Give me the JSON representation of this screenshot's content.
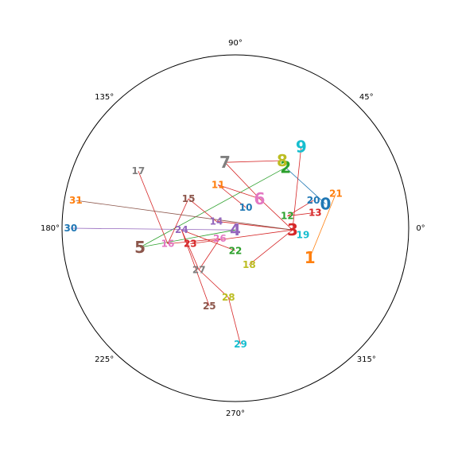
{
  "chart_data": {
    "type": "scatter",
    "projection": "polar",
    "grid": false,
    "r_tick_labels": false,
    "angle_ticks": [
      {
        "deg": 0,
        "label": "0°"
      },
      {
        "deg": 45,
        "label": "45°"
      },
      {
        "deg": 90,
        "label": "90°"
      },
      {
        "deg": 135,
        "label": "135°"
      },
      {
        "deg": 180,
        "label": "180°"
      },
      {
        "deg": 225,
        "label": "225°"
      },
      {
        "deg": 270,
        "label": "270°"
      },
      {
        "deg": 315,
        "label": "315°"
      }
    ],
    "points": [
      {
        "label": "0",
        "x": 0.52,
        "y": 0.14,
        "size": "large",
        "color": "#1f77b4"
      },
      {
        "label": "1",
        "x": 0.43,
        "y": -0.17,
        "size": "large",
        "color": "#ff7f0e"
      },
      {
        "label": "2",
        "x": 0.29,
        "y": 0.35,
        "size": "large",
        "color": "#2ca02c"
      },
      {
        "label": "3",
        "x": 0.33,
        "y": -0.01,
        "size": "large",
        "color": "#d62728"
      },
      {
        "label": "4",
        "x": 0.0,
        "y": -0.01,
        "size": "large",
        "color": "#9467bd"
      },
      {
        "label": "5",
        "x": -0.55,
        "y": -0.11,
        "size": "large",
        "color": "#8c564b"
      },
      {
        "label": "6",
        "x": 0.14,
        "y": 0.17,
        "size": "large",
        "color": "#e377c2"
      },
      {
        "label": "7",
        "x": -0.06,
        "y": 0.38,
        "size": "large",
        "color": "#7f7f7f"
      },
      {
        "label": "8",
        "x": 0.27,
        "y": 0.39,
        "size": "large",
        "color": "#bcbd22"
      },
      {
        "label": "9",
        "x": 0.38,
        "y": 0.47,
        "size": "large",
        "color": "#17becf"
      },
      {
        "label": "10",
        "x": 0.06,
        "y": 0.12,
        "size": "medium",
        "color": "#1f77b4"
      },
      {
        "label": "11",
        "x": -0.1,
        "y": 0.25,
        "size": "medium",
        "color": "#ff7f0e"
      },
      {
        "label": "12",
        "x": 0.3,
        "y": 0.07,
        "size": "medium",
        "color": "#2ca02c"
      },
      {
        "label": "13",
        "x": 0.46,
        "y": 0.09,
        "size": "medium",
        "color": "#d62728"
      },
      {
        "label": "14",
        "x": -0.11,
        "y": 0.04,
        "size": "medium",
        "color": "#9467bd"
      },
      {
        "label": "15",
        "x": -0.27,
        "y": 0.17,
        "size": "medium",
        "color": "#8c564b"
      },
      {
        "label": "16",
        "x": -0.39,
        "y": -0.09,
        "size": "medium",
        "color": "#e377c2"
      },
      {
        "label": "17",
        "x": -0.56,
        "y": 0.33,
        "size": "medium",
        "color": "#7f7f7f"
      },
      {
        "label": "18",
        "x": 0.08,
        "y": -0.21,
        "size": "medium",
        "color": "#bcbd22"
      },
      {
        "label": "19",
        "x": 0.39,
        "y": -0.04,
        "size": "medium",
        "color": "#17becf"
      },
      {
        "label": "20",
        "x": 0.45,
        "y": 0.16,
        "size": "medium",
        "color": "#1f77b4"
      },
      {
        "label": "21",
        "x": 0.58,
        "y": 0.2,
        "size": "medium",
        "color": "#ff7f0e"
      },
      {
        "label": "22",
        "x": 0.0,
        "y": -0.13,
        "size": "medium",
        "color": "#2ca02c"
      },
      {
        "label": "23",
        "x": -0.26,
        "y": -0.09,
        "size": "medium",
        "color": "#d62728"
      },
      {
        "label": "24",
        "x": -0.31,
        "y": -0.01,
        "size": "medium",
        "color": "#9467bd"
      },
      {
        "label": "25",
        "x": -0.15,
        "y": -0.45,
        "size": "medium",
        "color": "#8c564b"
      },
      {
        "label": "26",
        "x": -0.09,
        "y": -0.06,
        "size": "medium",
        "color": "#e377c2"
      },
      {
        "label": "27",
        "x": -0.21,
        "y": -0.24,
        "size": "medium",
        "color": "#7f7f7f"
      },
      {
        "label": "28",
        "x": -0.04,
        "y": -0.4,
        "size": "medium",
        "color": "#bcbd22"
      },
      {
        "label": "29",
        "x": 0.03,
        "y": -0.67,
        "size": "medium",
        "color": "#17becf"
      },
      {
        "label": "30",
        "x": -0.95,
        "y": 0.0,
        "size": "medium",
        "color": "#1f77b4"
      },
      {
        "label": "31",
        "x": -0.92,
        "y": 0.16,
        "size": "medium",
        "color": "#ff7f0e"
      }
    ],
    "links": [
      {
        "from": "0",
        "to": "2",
        "color": "#1f77b4"
      },
      {
        "from": "1",
        "to": "21",
        "color": "#ff7f0e"
      },
      {
        "from": "2",
        "to": "5",
        "color": "#2ca02c"
      },
      {
        "from": "3",
        "to": "6",
        "color": "#d62728"
      },
      {
        "from": "3",
        "to": "9",
        "color": "#d62728"
      },
      {
        "from": "3",
        "to": "18",
        "color": "#d62728"
      },
      {
        "from": "3",
        "to": "23",
        "color": "#d62728"
      },
      {
        "from": "4",
        "to": "30",
        "color": "#9467bd"
      },
      {
        "from": "5",
        "to": "4",
        "color": "#2ca02c"
      },
      {
        "from": "6",
        "to": "7",
        "color": "#d62728"
      },
      {
        "from": "6",
        "to": "11",
        "color": "#d62728"
      },
      {
        "from": "7",
        "to": "8",
        "color": "#d62728"
      },
      {
        "from": "10",
        "to": "11",
        "color": "#d62728"
      },
      {
        "from": "12",
        "to": "13",
        "color": "#d62728"
      },
      {
        "from": "12",
        "to": "20",
        "color": "#d62728"
      },
      {
        "from": "14",
        "to": "15",
        "color": "#d62728"
      },
      {
        "from": "14",
        "to": "3",
        "color": "#d62728"
      },
      {
        "from": "15",
        "to": "16",
        "color": "#d62728"
      },
      {
        "from": "16",
        "to": "17",
        "color": "#d62728"
      },
      {
        "from": "16",
        "to": "26",
        "color": "#d62728"
      },
      {
        "from": "22",
        "to": "24",
        "color": "#d62728"
      },
      {
        "from": "24",
        "to": "25",
        "color": "#d62728"
      },
      {
        "from": "24",
        "to": "27",
        "color": "#d62728"
      },
      {
        "from": "27",
        "to": "26",
        "color": "#d62728"
      },
      {
        "from": "27",
        "to": "28",
        "color": "#d62728"
      },
      {
        "from": "28",
        "to": "29",
        "color": "#d62728"
      },
      {
        "from": "31",
        "to": "3",
        "color": "#8c564b"
      }
    ]
  }
}
